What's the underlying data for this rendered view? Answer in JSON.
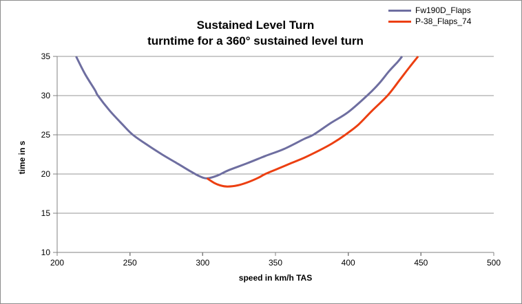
{
  "chart_data": {
    "type": "line",
    "title": "Sustained Level Turn",
    "subtitle": "turntime for a 360° sustained level turn",
    "xlabel": "speed in km/h TAS",
    "ylabel": "time in s",
    "xlim": [
      200,
      500
    ],
    "ylim": [
      10,
      35
    ],
    "x_ticks": [
      200,
      250,
      300,
      350,
      400,
      450,
      500
    ],
    "y_ticks": [
      10,
      15,
      20,
      25,
      30,
      35
    ],
    "grid": "horizontal-only",
    "legend_position": "top-right",
    "series": [
      {
        "name": "Fw190D_Flaps",
        "color": "#6E6EA0",
        "points": [
          [
            213,
            35
          ],
          [
            219,
            32.8
          ],
          [
            226,
            30.7
          ],
          [
            228,
            30
          ],
          [
            236,
            28.1
          ],
          [
            245,
            26.3
          ],
          [
            252,
            25
          ],
          [
            262,
            23.7
          ],
          [
            272,
            22.5
          ],
          [
            283,
            21.3
          ],
          [
            292,
            20.3
          ],
          [
            298,
            19.7
          ],
          [
            303,
            19.45
          ],
          [
            310,
            19.8
          ],
          [
            318,
            20.5
          ],
          [
            331,
            21.4
          ],
          [
            343,
            22.3
          ],
          [
            356,
            23.2
          ],
          [
            370,
            24.5
          ],
          [
            376,
            25
          ],
          [
            388,
            26.5
          ],
          [
            400,
            27.9
          ],
          [
            413,
            30
          ],
          [
            421,
            31.5
          ],
          [
            428,
            33.1
          ],
          [
            434,
            34.3
          ],
          [
            437,
            35
          ]
        ]
      },
      {
        "name": "P-38_Flaps_74",
        "color": "#EC3F11",
        "points": [
          [
            303,
            19.45
          ],
          [
            308,
            18.85
          ],
          [
            312,
            18.55
          ],
          [
            317,
            18.4
          ],
          [
            324,
            18.55
          ],
          [
            331,
            18.95
          ],
          [
            338,
            19.5
          ],
          [
            343,
            20
          ],
          [
            352,
            20.7
          ],
          [
            361,
            21.4
          ],
          [
            370,
            22.1
          ],
          [
            380,
            23
          ],
          [
            389,
            23.9
          ],
          [
            398,
            25
          ],
          [
            407,
            26.3
          ],
          [
            416,
            28
          ],
          [
            427,
            30
          ],
          [
            435,
            31.9
          ],
          [
            442,
            33.6
          ],
          [
            448,
            35
          ]
        ]
      }
    ],
    "colors": {
      "gridline": "#969696",
      "axis": "#808080",
      "border": "#8C8C8C",
      "text": "#000000",
      "background": "#FFFFFF"
    }
  }
}
